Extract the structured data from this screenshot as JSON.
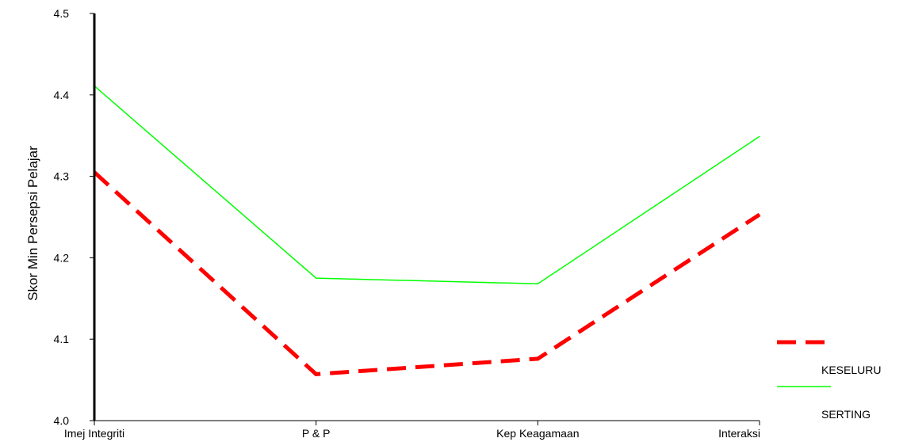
{
  "chart_data": {
    "type": "line",
    "title": "",
    "xlabel": "",
    "ylabel": "Skor Min Persepsi Pelajar",
    "categories": [
      "Imej Integriti",
      "P & P",
      "Kep Keagamaan",
      "Interaksi"
    ],
    "ylim": [
      4.0,
      4.5
    ],
    "yticks": [
      "4.0",
      "4.1",
      "4.2",
      "4.3",
      "4.4",
      "4.5"
    ],
    "grid": false,
    "legend_position": "right",
    "series": [
      {
        "name": "KESELURU",
        "values": [
          4.305,
          4.057,
          4.076,
          4.253
        ],
        "color": "#ff0000",
        "style": "dashed"
      },
      {
        "name": "SERTING",
        "values": [
          4.411,
          4.175,
          4.168,
          4.349
        ],
        "color": "#00ff00",
        "style": "solid"
      }
    ]
  }
}
